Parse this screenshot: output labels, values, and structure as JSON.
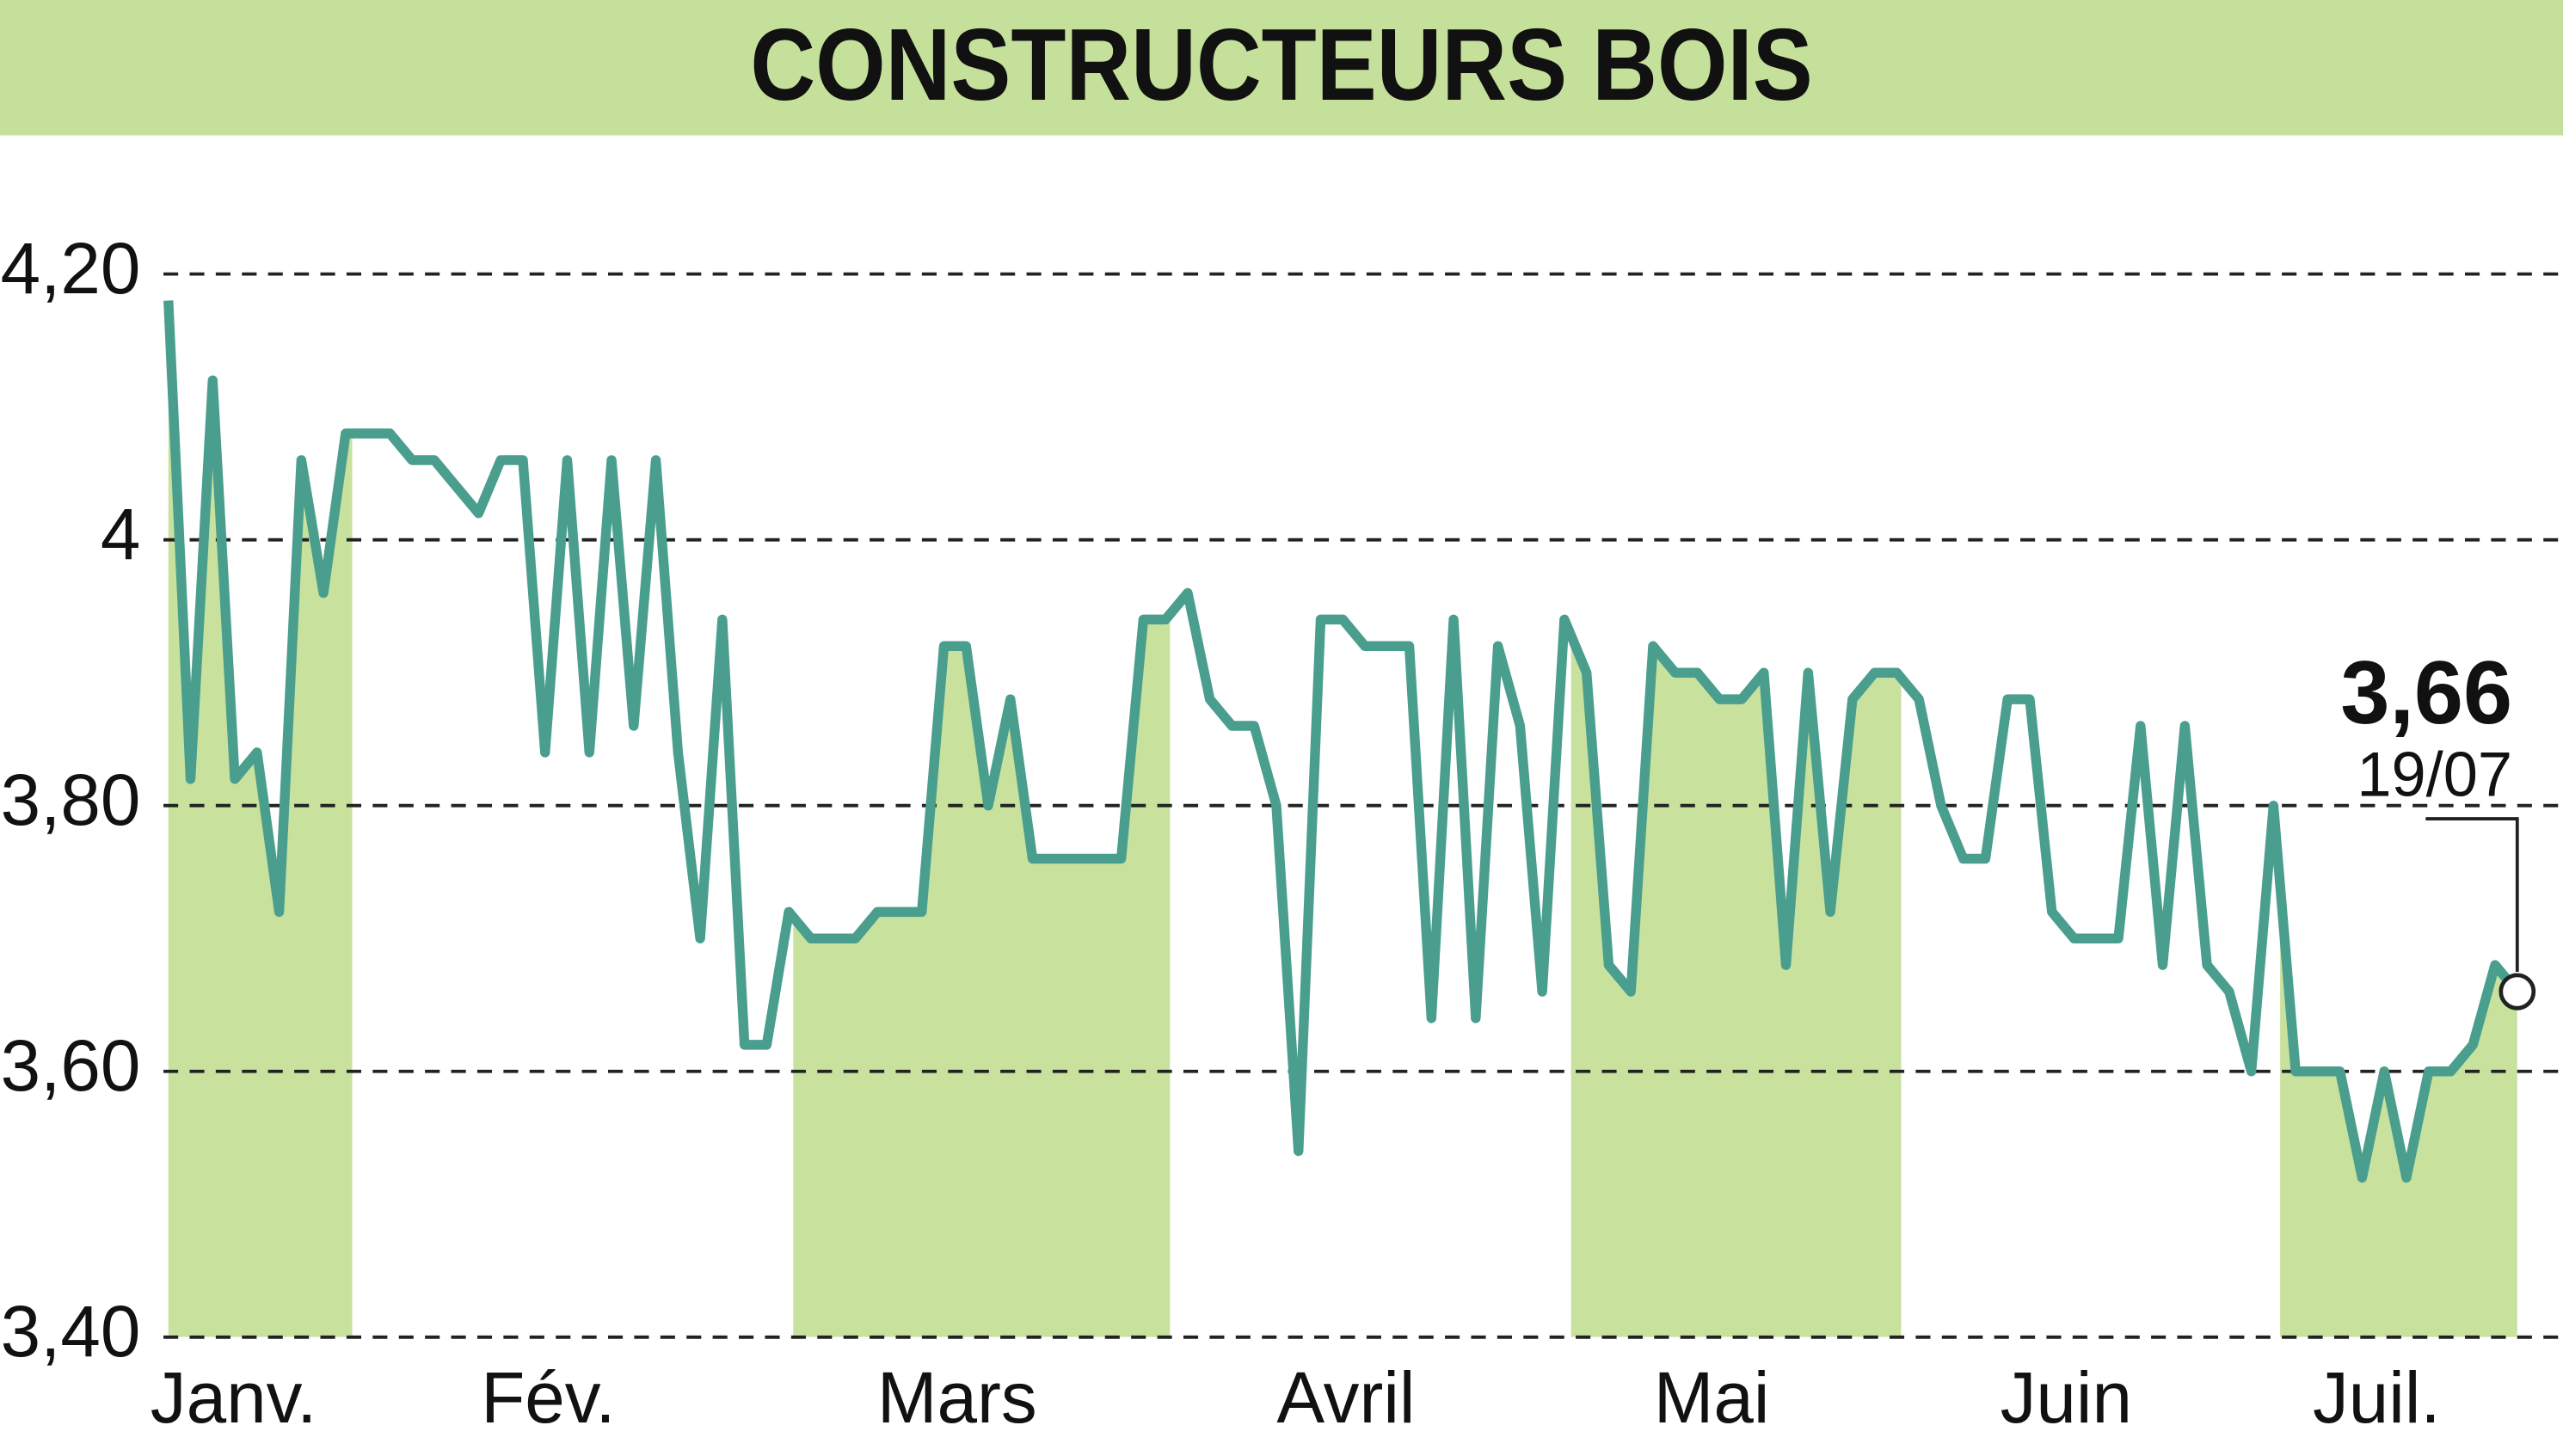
{
  "chart_data": {
    "type": "line",
    "title": "CONSTRUCTEURS BOIS",
    "series": [
      {
        "color": "#4a9e8e",
        "fill": "#c8e29e",
        "values": [
          4.18,
          3.82,
          4.12,
          3.82,
          3.84,
          3.72,
          4.06,
          3.96,
          4.08,
          4.08,
          4.08,
          4.06,
          4.06,
          4.04,
          4.02,
          4.06,
          4.06,
          3.84,
          4.06,
          3.84,
          4.06,
          3.86,
          4.06,
          3.84,
          3.7,
          3.94,
          3.62,
          3.62,
          3.72,
          3.7,
          3.7,
          3.7,
          3.72,
          3.72,
          3.72,
          3.92,
          3.92,
          3.8,
          3.88,
          3.76,
          3.76,
          3.76,
          3.76,
          3.76,
          3.94,
          3.94,
          3.96,
          3.88,
          3.86,
          3.86,
          3.8,
          3.54,
          3.94,
          3.94,
          3.92,
          3.92,
          3.92,
          3.64,
          3.94,
          3.64,
          3.92,
          3.86,
          3.66,
          3.94,
          3.9,
          3.68,
          3.66,
          3.92,
          3.9,
          3.9,
          3.88,
          3.88,
          3.9,
          3.68,
          3.9,
          3.72,
          3.88,
          3.9,
          3.9,
          3.88,
          3.8,
          3.76,
          3.76,
          3.88,
          3.88,
          3.72,
          3.7,
          3.7,
          3.7,
          3.86,
          3.68,
          3.86,
          3.68,
          3.66,
          3.6,
          3.8,
          3.6,
          3.6,
          3.6,
          3.52,
          3.6,
          3.52,
          3.6,
          3.6,
          3.62,
          3.68,
          3.66
        ]
      }
    ],
    "annotation": {
      "value_label": "3,66",
      "date": "19/07"
    },
    "xlim": [
      0,
      106
    ],
    "xticks": [
      {
        "value": -0.2,
        "label": "Janv."
      },
      {
        "value": 8.3,
        "label": "Fév."
      },
      {
        "value": 28.2,
        "label": "Mars"
      },
      {
        "value": 45.2,
        "label": "Avril"
      },
      {
        "value": 63.3,
        "label": "Mai"
      },
      {
        "value": 78.2,
        "label": "Juin"
      },
      {
        "value": 95.3,
        "label": "Juil."
      }
    ],
    "ylim": [
      3.4,
      4.2
    ],
    "yticks": [
      {
        "value": 3.4,
        "label": "3,40"
      },
      {
        "value": 3.6,
        "label": "3,60"
      },
      {
        "value": 3.8,
        "label": "3,80"
      },
      4,
      {
        "value": 4.2,
        "label": "4,20"
      }
    ],
    "grid": true
  }
}
